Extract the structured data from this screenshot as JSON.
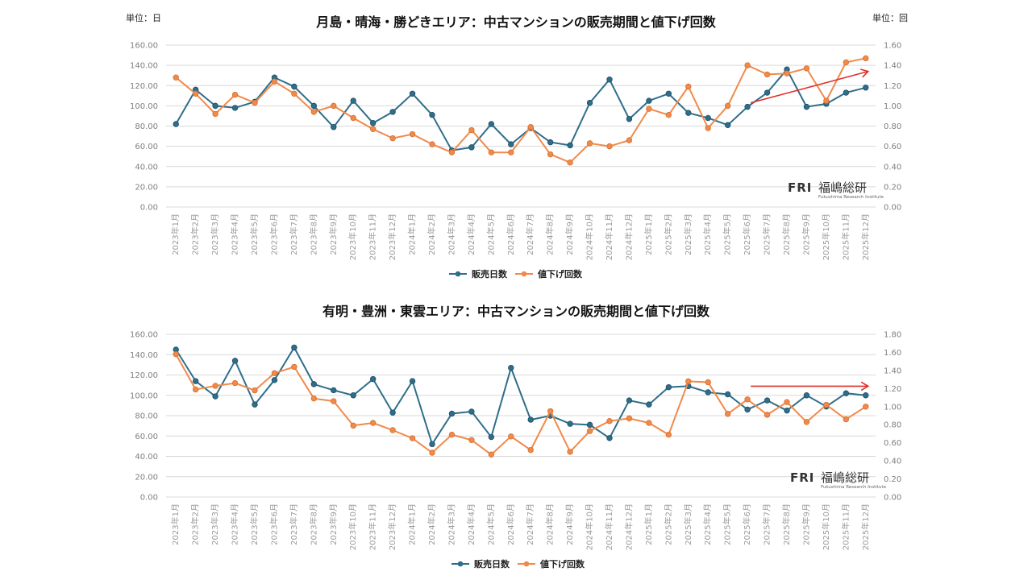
{
  "chart_data": [
    {
      "type": "line",
      "title": "月島・晴海・勝どきエリア：中古マンションの販売期間と値下げ回数",
      "left_unit": "単位：日",
      "right_unit": "単位：回",
      "categories": [
        "2023年1月",
        "2023年2月",
        "2023年3月",
        "2023年4月",
        "2023年5月",
        "2023年6月",
        "2023年7月",
        "2023年8月",
        "2023年9月",
        "2023年10月",
        "2023年11月",
        "2023年12月",
        "2024年1月",
        "2024年2月",
        "2024年3月",
        "2024年4月",
        "2024年5月",
        "2024年6月",
        "2024年7月",
        "2024年8月",
        "2024年9月",
        "2024年10月",
        "2024年11月",
        "2024年12月",
        "2025年1月",
        "2025年2月",
        "2025年3月",
        "2025年4月",
        "2025年5月",
        "2025年6月",
        "2025年7月",
        "2025年8月",
        "2025年9月",
        "2025年10月",
        "2025年11月",
        "2025年12月"
      ],
      "y_left": {
        "min": 0,
        "max": 160,
        "ticks": [
          "0.00",
          "20.00",
          "40.00",
          "60.00",
          "80.00",
          "100.00",
          "120.00",
          "140.00",
          "160.00"
        ]
      },
      "y_right": {
        "min": 0,
        "max": 1.6,
        "ticks": [
          "0.00",
          "0.20",
          "0.40",
          "0.60",
          "0.80",
          "1.00",
          "1.20",
          "1.40",
          "1.60"
        ]
      },
      "series": [
        {
          "name": "販売日数",
          "axis": "left",
          "color": "#2e6e8a",
          "values": [
            82,
            116,
            100,
            98,
            104,
            128,
            119,
            100,
            79,
            105,
            83,
            94,
            112,
            91,
            56,
            59,
            82,
            62,
            78,
            64,
            61,
            103,
            126,
            87,
            105,
            112,
            93,
            88,
            81,
            99,
            113,
            136,
            99,
            102,
            113,
            118
          ]
        },
        {
          "name": "値下げ回数",
          "axis": "right",
          "color": "#f08a4b",
          "values": [
            1.28,
            1.12,
            0.92,
            1.11,
            1.03,
            1.24,
            1.12,
            0.94,
            1.0,
            0.88,
            0.77,
            0.68,
            0.72,
            0.62,
            0.54,
            0.76,
            0.54,
            0.54,
            0.79,
            0.52,
            0.44,
            0.63,
            0.6,
            0.66,
            0.97,
            0.91,
            1.19,
            0.78,
            1.0,
            1.4,
            1.31,
            1.32,
            1.37,
            1.05,
            1.43,
            1.47
          ]
        }
      ],
      "trend_arrow": "up",
      "logo": {
        "mark": "FRI",
        "name": "福嶋総研",
        "sub": "Fukushima Research Institute"
      }
    },
    {
      "type": "line",
      "title": "有明・豊洲・東雲エリア：中古マンションの販売期間と値下げ回数",
      "categories": [
        "2023年1月",
        "2023年2月",
        "2023年3月",
        "2023年4月",
        "2023年5月",
        "2023年6月",
        "2023年7月",
        "2023年8月",
        "2023年9月",
        "2023年10月",
        "2023年11月",
        "2023年12月",
        "2024年1月",
        "2024年2月",
        "2024年3月",
        "2024年4月",
        "2024年5月",
        "2024年6月",
        "2024年7月",
        "2024年8月",
        "2024年9月",
        "2024年10月",
        "2024年11月",
        "2024年12月",
        "2025年1月",
        "2025年2月",
        "2025年3月",
        "2025年4月",
        "2025年5月",
        "2025年6月",
        "2025年7月",
        "2025年8月",
        "2025年9月",
        "2025年10月",
        "2025年11月",
        "2025年12月"
      ],
      "y_left": {
        "min": 0,
        "max": 160,
        "ticks": [
          "0.00",
          "20.00",
          "40.00",
          "60.00",
          "80.00",
          "100.00",
          "120.00",
          "140.00",
          "160.00"
        ]
      },
      "y_right": {
        "min": 0,
        "max": 1.8,
        "ticks": [
          "0.00",
          "0.20",
          "0.40",
          "0.60",
          "0.80",
          "1.00",
          "1.20",
          "1.40",
          "1.60",
          "1.80"
        ]
      },
      "series": [
        {
          "name": "販売日数",
          "axis": "left",
          "color": "#2e6e8a",
          "values": [
            145,
            114,
            99,
            134,
            91,
            115,
            147,
            111,
            105,
            100,
            116,
            83,
            114,
            52,
            82,
            84,
            59,
            127,
            76,
            80,
            72,
            71,
            58,
            95,
            91,
            108,
            109,
            103,
            101,
            86,
            95,
            85,
            100,
            89,
            102,
            100
          ]
        },
        {
          "name": "値下げ回数",
          "axis": "right",
          "color": "#f08a4b",
          "values": [
            1.58,
            1.19,
            1.23,
            1.26,
            1.18,
            1.37,
            1.44,
            1.09,
            1.06,
            0.79,
            0.82,
            0.74,
            0.65,
            0.49,
            0.69,
            0.63,
            0.47,
            0.67,
            0.52,
            0.95,
            0.5,
            0.73,
            0.84,
            0.87,
            0.82,
            0.69,
            1.28,
            1.27,
            0.92,
            1.08,
            0.91,
            1.05,
            0.83,
            1.02,
            0.86,
            1.0
          ]
        }
      ],
      "trend_arrow": "flat",
      "logo": {
        "mark": "FRI",
        "name": "福嶋総研",
        "sub": "Fukushima Research Institute"
      }
    }
  ]
}
